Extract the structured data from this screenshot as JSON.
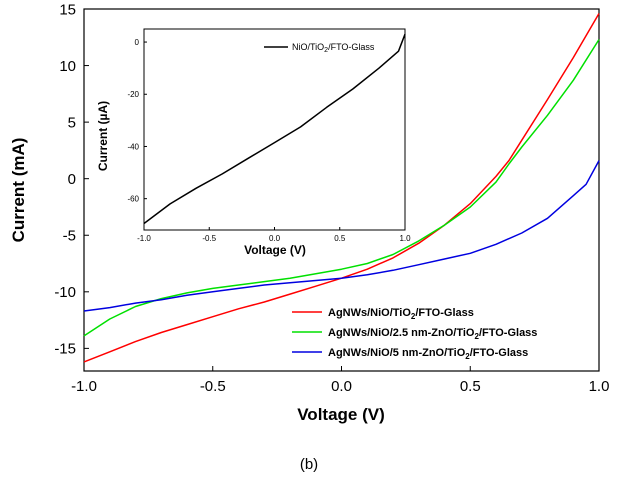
{
  "chart_data": [
    {
      "type": "line",
      "xlabel": "Voltage (V)",
      "ylabel": "Current (mA)",
      "xlim": [
        -1.0,
        1.0
      ],
      "ylim": [
        -17,
        15
      ],
      "x_ticks": [
        "-1.0",
        "-0.5",
        "0.0",
        "0.5",
        "1.0"
      ],
      "y_ticks": [
        "15",
        "10",
        "5",
        "0",
        "-5",
        "-10",
        "-15"
      ],
      "grid": false,
      "legend_position": "bottom-right",
      "series": [
        {
          "name": "AgNWs/NiO/TiO2/FTO-Glass",
          "color": "#ff0000",
          "x": [
            -1.0,
            -0.9,
            -0.8,
            -0.7,
            -0.6,
            -0.5,
            -0.4,
            -0.3,
            -0.2,
            -0.1,
            0.0,
            0.1,
            0.2,
            0.3,
            0.4,
            0.5,
            0.6,
            0.65,
            0.7,
            0.8,
            0.9,
            1.0
          ],
          "y": [
            -16.2,
            -15.3,
            -14.4,
            -13.6,
            -12.9,
            -12.2,
            -11.5,
            -10.9,
            -10.2,
            -9.5,
            -8.8,
            -8.0,
            -7.0,
            -5.7,
            -4.1,
            -2.2,
            0.2,
            1.6,
            3.4,
            7.0,
            10.7,
            14.6
          ]
        },
        {
          "name": "AgNWs/NiO/2.5 nm-ZnO/TiO2/FTO-Glass",
          "color": "#00e000",
          "x": [
            -1.0,
            -0.9,
            -0.8,
            -0.7,
            -0.6,
            -0.5,
            -0.4,
            -0.3,
            -0.2,
            -0.1,
            0.0,
            0.1,
            0.2,
            0.3,
            0.4,
            0.5,
            0.6,
            0.65,
            0.7,
            0.8,
            0.9,
            1.0
          ],
          "y": [
            -13.9,
            -12.4,
            -11.3,
            -10.6,
            -10.1,
            -9.7,
            -9.4,
            -9.1,
            -8.8,
            -8.4,
            -8.0,
            -7.5,
            -6.7,
            -5.5,
            -4.1,
            -2.5,
            -0.3,
            1.3,
            2.8,
            5.6,
            8.7,
            12.3
          ]
        },
        {
          "name": "AgNWs/NiO/5 nm-ZnO/TiO2/FTO-Glass",
          "color": "#0000e0",
          "x": [
            -1.0,
            -0.9,
            -0.8,
            -0.7,
            -0.6,
            -0.5,
            -0.4,
            -0.3,
            -0.2,
            -0.1,
            0.0,
            0.1,
            0.2,
            0.3,
            0.4,
            0.5,
            0.6,
            0.7,
            0.8,
            0.9,
            0.95,
            1.0
          ],
          "y": [
            -11.7,
            -11.4,
            -11.0,
            -10.7,
            -10.3,
            -10.0,
            -9.7,
            -9.4,
            -9.2,
            -9.0,
            -8.8,
            -8.5,
            -8.1,
            -7.6,
            -7.1,
            -6.6,
            -5.8,
            -4.8,
            -3.5,
            -1.5,
            -0.5,
            1.6
          ]
        }
      ]
    },
    {
      "type": "line",
      "xlabel": "Voltage (V)",
      "ylabel": "Current (µA)",
      "xlim": [
        -1.0,
        1.0
      ],
      "ylim": [
        -72,
        5
      ],
      "x_ticks": [
        "-1.0",
        "-0.5",
        "0.0",
        "0.5",
        "1.0"
      ],
      "y_ticks": [
        "0",
        "-20",
        "-40",
        "-60"
      ],
      "legend_position": "top-right",
      "series": [
        {
          "name": "NiO/TiO2/FTO-Glass",
          "color": "#000000",
          "x": [
            -1.0,
            -0.8,
            -0.6,
            -0.4,
            -0.2,
            0.0,
            0.2,
            0.4,
            0.6,
            0.8,
            0.95,
            1.0
          ],
          "y": [
            -69.5,
            -62.0,
            -56.0,
            -50.5,
            -44.5,
            -38.5,
            -32.5,
            -25.0,
            -18.0,
            -10.0,
            -3.5,
            3.0
          ]
        }
      ]
    }
  ],
  "legend_labels": [
    {
      "pre": "AgNWs/NiO/TiO",
      "sub": "2",
      "post": "/FTO-Glass"
    },
    {
      "pre": "AgNWs/NiO/2.5 nm-ZnO/TiO",
      "sub": "2",
      "post": "/FTO-Glass"
    },
    {
      "pre": "AgNWs/NiO/5 nm-ZnO/TiO",
      "sub": "2",
      "post": "/FTO-Glass"
    }
  ],
  "inset_legend_label": {
    "pre": "NiO/TiO",
    "sub": "2",
    "post": "/FTO-Glass"
  },
  "caption": "(b)"
}
